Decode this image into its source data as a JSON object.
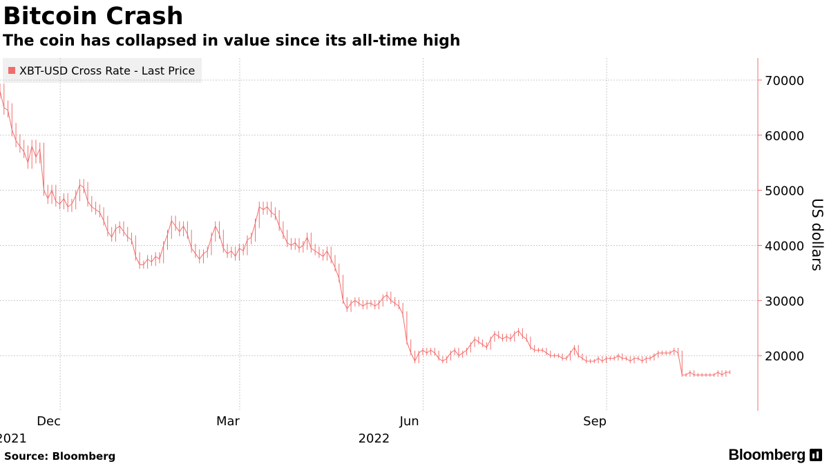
{
  "header": {
    "title": "Bitcoin Crash",
    "subtitle": "The coin has collapsed in value since its all-time high"
  },
  "legend": {
    "label": "XBT-USD Cross Rate - Last Price"
  },
  "footer": {
    "source": "Source: Bloomberg",
    "brand": "Bloomberg"
  },
  "colors": {
    "series": "#f26c6c",
    "grid": "#c8c8c8",
    "axis": "#f26c6c"
  },
  "chart_data": {
    "type": "line",
    "title": "Bitcoin Crash",
    "subtitle": "The coin has collapsed in value since its all-time high",
    "xlabel": "",
    "ylabel": "US dollars",
    "ylim": [
      10000,
      74000
    ],
    "y_ticks": [
      20000,
      30000,
      40000,
      50000,
      60000,
      70000
    ],
    "y_tick_labels": [
      "20000",
      "30000",
      "40000",
      "50000",
      "60000",
      "70000"
    ],
    "x_range_days": [
      0,
      380
    ],
    "x_ticks": [
      {
        "day": 25,
        "label": "Dec",
        "sublabel": "2021"
      },
      {
        "day": 115,
        "label": "Mar",
        "sublabel": ""
      },
      {
        "day": 207,
        "label": "Jun",
        "sublabel": "2022"
      },
      {
        "day": 299,
        "label": "Sep",
        "sublabel": ""
      }
    ],
    "x_start_date": "2021-11-06",
    "grid": true,
    "legend_position": "top-left",
    "series": [
      {
        "name": "XBT-USD Cross Rate - Last Price",
        "points": [
          [
            0,
            68000
          ],
          [
            2,
            65000
          ],
          [
            4,
            64500
          ],
          [
            6,
            61000
          ],
          [
            8,
            59000
          ],
          [
            10,
            58000
          ],
          [
            12,
            57000
          ],
          [
            14,
            55000
          ],
          [
            16,
            58000
          ],
          [
            18,
            56000
          ],
          [
            20,
            57500
          ],
          [
            22,
            50000
          ],
          [
            24,
            48500
          ],
          [
            26,
            50000
          ],
          [
            28,
            48000
          ],
          [
            30,
            47500
          ],
          [
            32,
            48500
          ],
          [
            34,
            47000
          ],
          [
            36,
            47500
          ],
          [
            38,
            49000
          ],
          [
            40,
            51000
          ],
          [
            42,
            50500
          ],
          [
            44,
            48000
          ],
          [
            46,
            47000
          ],
          [
            48,
            46500
          ],
          [
            50,
            46000
          ],
          [
            52,
            44500
          ],
          [
            54,
            42500
          ],
          [
            56,
            41500
          ],
          [
            58,
            43000
          ],
          [
            60,
            43500
          ],
          [
            62,
            42500
          ],
          [
            64,
            41500
          ],
          [
            66,
            41000
          ],
          [
            68,
            38000
          ],
          [
            70,
            36500
          ],
          [
            72,
            36500
          ],
          [
            74,
            37500
          ],
          [
            76,
            37000
          ],
          [
            78,
            38000
          ],
          [
            80,
            37500
          ],
          [
            82,
            40000
          ],
          [
            84,
            42000
          ],
          [
            86,
            44500
          ],
          [
            88,
            43500
          ],
          [
            90,
            42500
          ],
          [
            92,
            43500
          ],
          [
            94,
            42000
          ],
          [
            96,
            39500
          ],
          [
            98,
            38500
          ],
          [
            100,
            37500
          ],
          [
            102,
            38500
          ],
          [
            104,
            39000
          ],
          [
            106,
            41500
          ],
          [
            108,
            43500
          ],
          [
            110,
            42000
          ],
          [
            112,
            39500
          ],
          [
            114,
            38500
          ],
          [
            116,
            39000
          ],
          [
            118,
            38000
          ],
          [
            120,
            39500
          ],
          [
            122,
            39000
          ],
          [
            124,
            41000
          ],
          [
            126,
            41500
          ],
          [
            128,
            44000
          ],
          [
            130,
            47000
          ],
          [
            132,
            46500
          ],
          [
            134,
            47000
          ],
          [
            136,
            46000
          ],
          [
            138,
            45500
          ],
          [
            140,
            43500
          ],
          [
            142,
            42000
          ],
          [
            144,
            40500
          ],
          [
            146,
            40000
          ],
          [
            148,
            40500
          ],
          [
            150,
            39500
          ],
          [
            152,
            40000
          ],
          [
            154,
            41500
          ],
          [
            156,
            39500
          ],
          [
            158,
            39000
          ],
          [
            160,
            38500
          ],
          [
            162,
            38000
          ],
          [
            164,
            39000
          ],
          [
            166,
            37500
          ],
          [
            168,
            36000
          ],
          [
            170,
            34000
          ],
          [
            172,
            30000
          ],
          [
            174,
            28500
          ],
          [
            176,
            29500
          ],
          [
            178,
            30000
          ],
          [
            180,
            29500
          ],
          [
            182,
            29000
          ],
          [
            184,
            29500
          ],
          [
            186,
            29500
          ],
          [
            188,
            29000
          ],
          [
            190,
            29500
          ],
          [
            192,
            30500
          ],
          [
            194,
            31000
          ],
          [
            196,
            30000
          ],
          [
            198,
            29500
          ],
          [
            200,
            29000
          ],
          [
            202,
            27500
          ],
          [
            204,
            22500
          ],
          [
            206,
            20500
          ],
          [
            208,
            19000
          ],
          [
            210,
            20500
          ],
          [
            212,
            21000
          ],
          [
            214,
            20500
          ],
          [
            216,
            21000
          ],
          [
            218,
            20500
          ],
          [
            220,
            19500
          ],
          [
            222,
            19000
          ],
          [
            224,
            19500
          ],
          [
            226,
            20500
          ],
          [
            228,
            21000
          ],
          [
            230,
            20000
          ],
          [
            232,
            20500
          ],
          [
            234,
            21000
          ],
          [
            236,
            22000
          ],
          [
            238,
            23000
          ],
          [
            240,
            22500
          ],
          [
            242,
            22000
          ],
          [
            244,
            21500
          ],
          [
            246,
            23000
          ],
          [
            248,
            24000
          ],
          [
            250,
            23500
          ],
          [
            252,
            23000
          ],
          [
            254,
            23500
          ],
          [
            256,
            23000
          ],
          [
            258,
            24000
          ],
          [
            260,
            24500
          ],
          [
            262,
            23500
          ],
          [
            264,
            23000
          ],
          [
            266,
            21500
          ],
          [
            268,
            21000
          ],
          [
            270,
            21000
          ],
          [
            272,
            21000
          ],
          [
            274,
            20500
          ],
          [
            276,
            20000
          ],
          [
            278,
            20000
          ],
          [
            280,
            20000
          ],
          [
            282,
            19500
          ],
          [
            284,
            19500
          ],
          [
            286,
            20500
          ],
          [
            288,
            21500
          ],
          [
            290,
            20000
          ],
          [
            292,
            19500
          ],
          [
            294,
            19000
          ],
          [
            296,
            19000
          ],
          [
            298,
            19000
          ],
          [
            300,
            19500
          ],
          [
            302,
            19000
          ],
          [
            304,
            19500
          ],
          [
            306,
            19500
          ],
          [
            308,
            19500
          ],
          [
            310,
            20000
          ],
          [
            312,
            19500
          ],
          [
            314,
            19500
          ],
          [
            316,
            19000
          ],
          [
            318,
            19500
          ],
          [
            320,
            19500
          ],
          [
            322,
            19000
          ],
          [
            324,
            19500
          ],
          [
            326,
            19500
          ],
          [
            328,
            20000
          ],
          [
            330,
            20500
          ],
          [
            332,
            20500
          ],
          [
            334,
            20500
          ],
          [
            336,
            20500
          ],
          [
            338,
            21000
          ],
          [
            340,
            20500
          ],
          [
            342,
            16500
          ],
          [
            344,
            16500
          ],
          [
            346,
            17000
          ],
          [
            348,
            16500
          ],
          [
            350,
            16500
          ],
          [
            352,
            16500
          ],
          [
            354,
            16500
          ],
          [
            356,
            16500
          ],
          [
            358,
            16500
          ],
          [
            360,
            17000
          ],
          [
            362,
            16500
          ],
          [
            364,
            17000
          ],
          [
            366,
            17000
          ]
        ]
      }
    ]
  }
}
